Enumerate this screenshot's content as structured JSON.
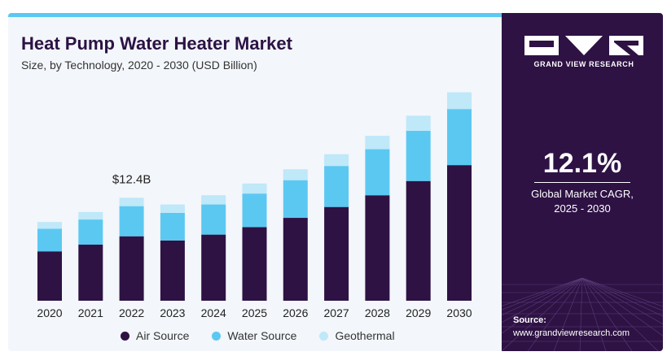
{
  "header": {
    "title": "Heat Pump Water Heater Market",
    "subtitle": "Size, by Technology, 2020 - 2030 (USD Billion)"
  },
  "brand": {
    "name": "GRAND VIEW RESEARCH",
    "logo_icon": "gvr-logo-icon"
  },
  "cagr": {
    "value": "12.1%",
    "label_line1": "Global Market CAGR,",
    "label_line2": "2025 - 2030"
  },
  "source": {
    "label": "Source:",
    "url": "www.grandviewresearch.com"
  },
  "colors": {
    "air_source": "#2e1244",
    "water_source": "#5bc8f2",
    "geothermal": "#bfe8f9",
    "accent": "#5bc8f2",
    "panel": "#2e1244"
  },
  "chart_data": {
    "type": "bar",
    "stacked": true,
    "categories": [
      "2020",
      "2021",
      "2022",
      "2023",
      "2024",
      "2025",
      "2026",
      "2027",
      "2028",
      "2029",
      "2030"
    ],
    "series": [
      {
        "name": "Air Source",
        "color": "#2e1244",
        "values": [
          5.9,
          6.7,
          7.7,
          7.2,
          7.9,
          8.8,
          9.9,
          11.2,
          12.6,
          14.3,
          16.2
        ]
      },
      {
        "name": "Water Source",
        "color": "#5bc8f2",
        "values": [
          2.7,
          3.0,
          3.6,
          3.3,
          3.6,
          4.0,
          4.5,
          4.9,
          5.5,
          6.0,
          6.7
        ]
      },
      {
        "name": "Geothermal",
        "color": "#bfe8f9",
        "values": [
          0.8,
          0.9,
          1.0,
          1.0,
          1.1,
          1.2,
          1.3,
          1.4,
          1.6,
          1.8,
          2.0
        ]
      }
    ],
    "annotations": [
      {
        "category": "2022",
        "text": "$12.4B"
      }
    ],
    "legend_position": "bottom",
    "grid": false
  }
}
